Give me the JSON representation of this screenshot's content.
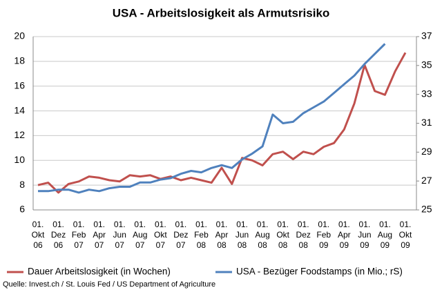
{
  "chart_data": {
    "type": "line",
    "title": "USA - Arbeitslosigkeit als Armutsrisiko",
    "source": "Quelle: Invest.ch / St. Louis Fed /  US Department of Agriculture",
    "categories": [
      "01. Okt 06",
      null,
      "01. Dez 06",
      null,
      "01. Feb 07",
      null,
      "01. Apr 07",
      null,
      "01. Jun 07",
      null,
      "01. Aug 07",
      null,
      "01. Okt 07",
      null,
      "01. Dez 07",
      null,
      "01. Feb 08",
      null,
      "01. Apr 08",
      null,
      "01. Jun 08",
      null,
      "01. Aug 08",
      null,
      "01. Okt 08",
      null,
      "01. Dez 08",
      null,
      "01. Feb 09",
      null,
      "01. Apr 09",
      null,
      "01. Jun 09",
      null,
      "01. Aug 09",
      null,
      "01. Okt 09"
    ],
    "series": [
      {
        "name": "Dauer Arbeitslosigkeit (in Wochen)",
        "color": "#c0504d",
        "values": [
          8.0,
          8.2,
          7.4,
          8.1,
          8.3,
          8.7,
          8.6,
          8.4,
          8.3,
          8.8,
          8.7,
          8.8,
          8.5,
          8.7,
          8.4,
          8.6,
          8.4,
          8.2,
          9.4,
          8.1,
          10.2,
          10.0,
          9.6,
          10.5,
          10.7,
          10.1,
          10.7,
          10.5,
          11.1,
          11.4,
          12.5,
          14.6,
          17.7,
          15.6,
          15.3,
          17.2,
          18.7
        ]
      },
      {
        "name": "USA - Bezüger Foodstamps (in Mio.; rS)",
        "color": "#4f81bd",
        "axis": "y2",
        "values": [
          26.3,
          26.3,
          26.4,
          26.4,
          26.2,
          26.4,
          26.3,
          26.5,
          26.6,
          26.6,
          26.9,
          26.9,
          27.1,
          27.2,
          27.5,
          27.7,
          27.6,
          27.9,
          28.1,
          27.9,
          28.5,
          28.9,
          29.4,
          31.6,
          31.0,
          31.1,
          31.7,
          32.1,
          32.5,
          33.1,
          33.7,
          34.3,
          35.1,
          35.8,
          36.5,
          null,
          null
        ]
      }
    ],
    "ylim": [
      6,
      20
    ],
    "yticks": [
      6,
      8,
      10,
      12,
      14,
      16,
      18,
      20
    ],
    "y2lim": [
      25,
      37
    ],
    "y2ticks": [
      25,
      27,
      29,
      31,
      33,
      35,
      37
    ],
    "grid": true,
    "legend": "bottom"
  }
}
